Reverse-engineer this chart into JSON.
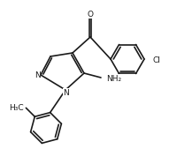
{
  "background_color": "#ffffff",
  "line_color": "#1a1a1a",
  "line_width": 1.2,
  "font_size": 6.5,
  "fig_width": 2.01,
  "fig_height": 1.86,
  "dpi": 100,
  "xlim": [
    0.0,
    10.05
  ],
  "ylim": [
    0.0,
    9.3
  ]
}
